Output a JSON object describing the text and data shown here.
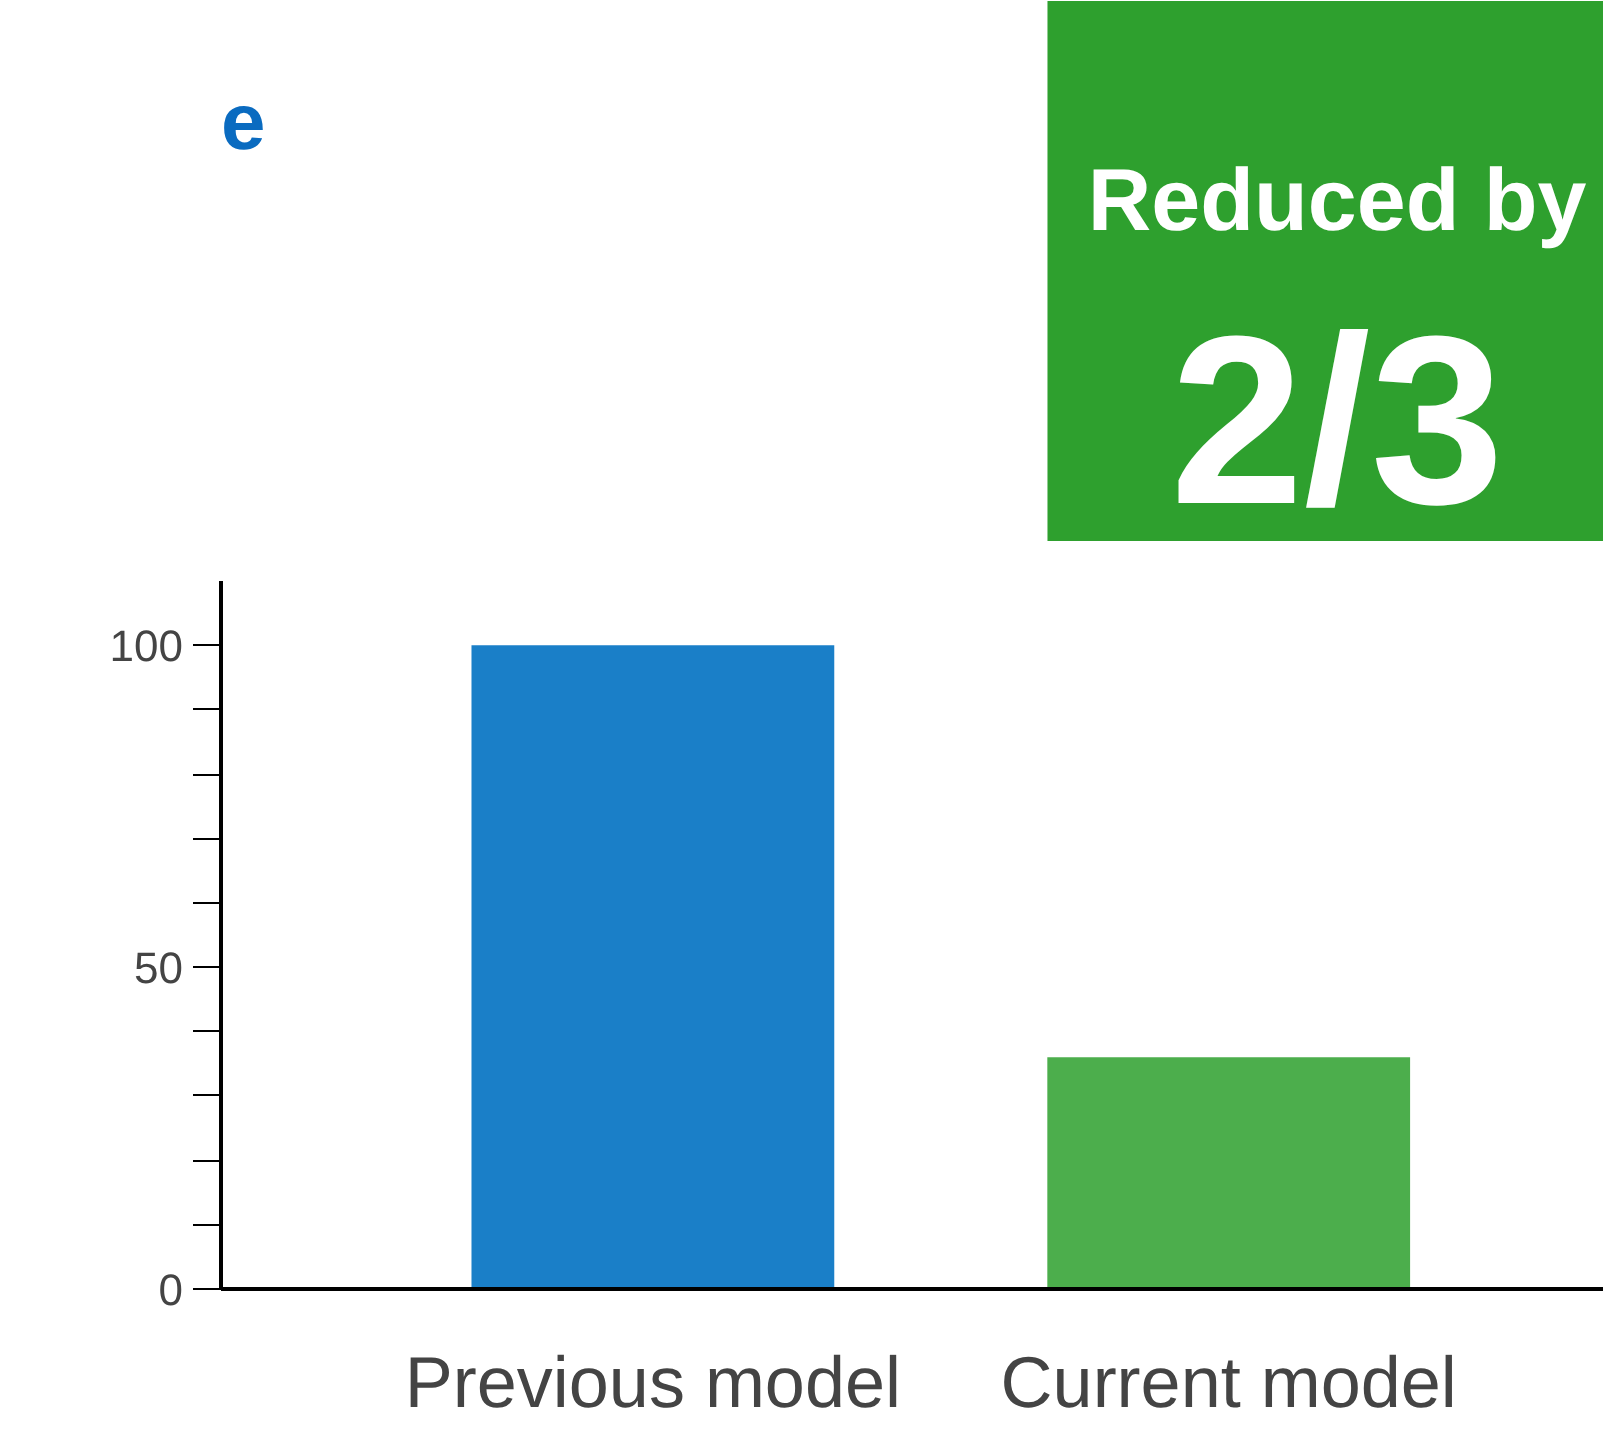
{
  "chart_data": {
    "type": "bar",
    "title": "e",
    "categories": [
      "Previous model",
      "Current model"
    ],
    "values": [
      100,
      36
    ],
    "colors": [
      "#1a7fc8",
      "#4cae4c"
    ],
    "ylim": [
      0,
      110
    ],
    "yticks": [
      0,
      {
        "value": 10,
        "label": null
      },
      {
        "value": 20,
        "label": null
      },
      {
        "value": 30,
        "label": null
      },
      {
        "value": 40,
        "label": null
      },
      50,
      {
        "value": 60,
        "label": null
      },
      {
        "value": 70,
        "label": null
      },
      {
        "value": 80,
        "label": null
      },
      {
        "value": 90,
        "label": null
      },
      100
    ],
    "annotations": [
      "Reduced by",
      "2/3"
    ],
    "grid": false
  }
}
